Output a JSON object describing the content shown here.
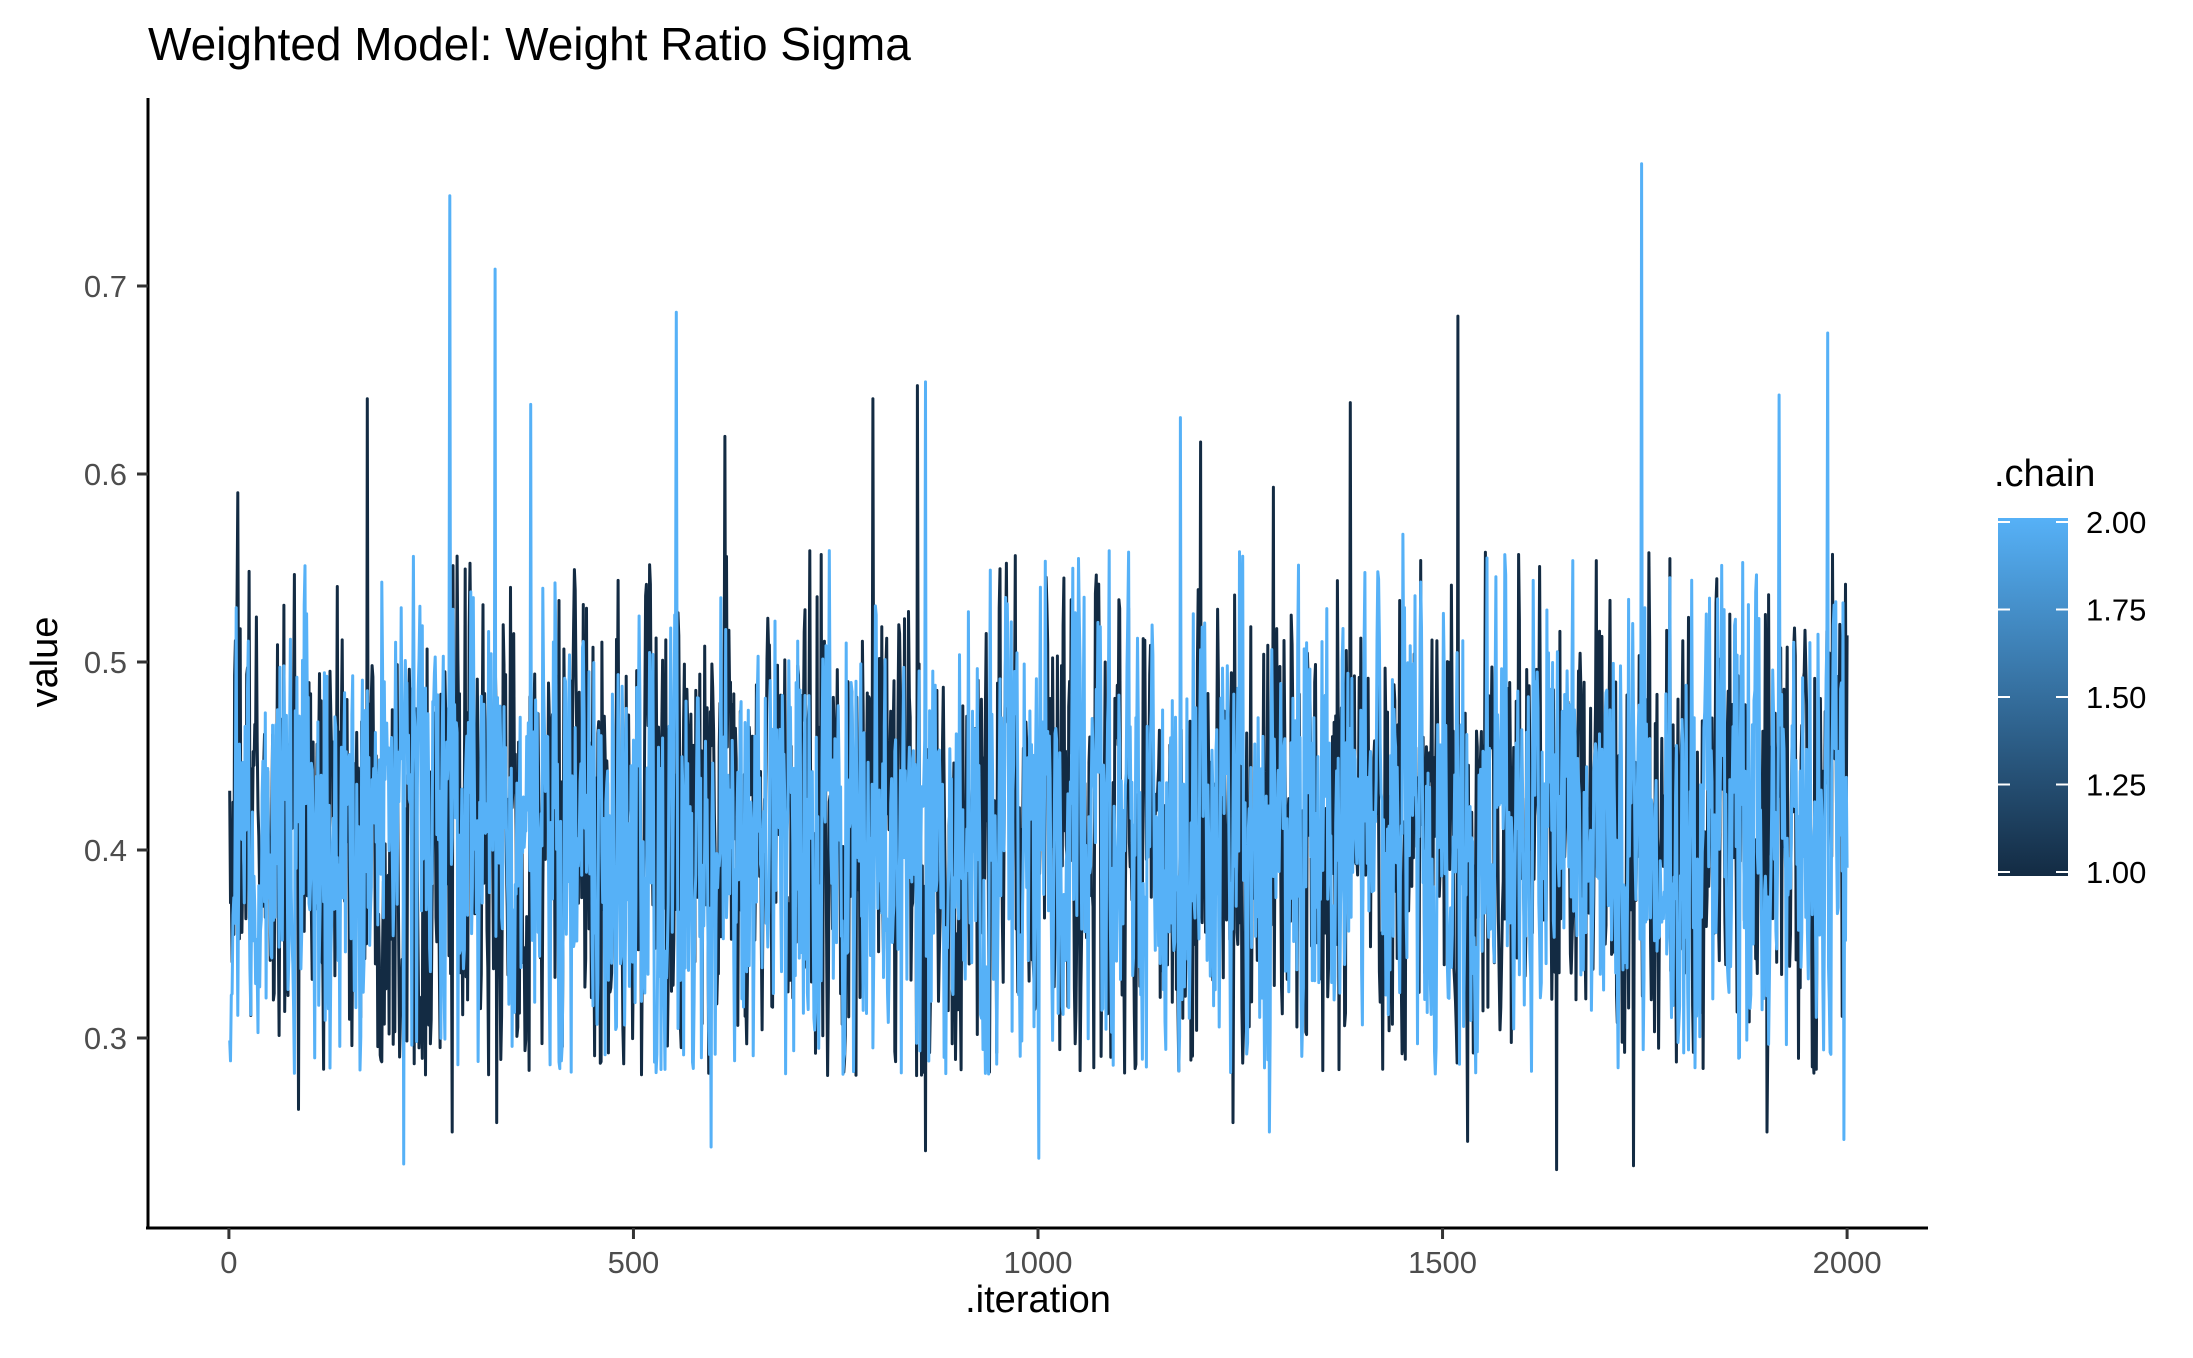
{
  "chart_data": {
    "type": "line",
    "title": "Weighted Model: Weight Ratio Sigma",
    "xlabel": ".iteration",
    "ylabel": "value",
    "xlim": [
      -100,
      2100
    ],
    "ylim": [
      0.2,
      0.8
    ],
    "x_ticks": [
      0,
      500,
      1000,
      1500,
      2000
    ],
    "x_tick_labels": [
      "0",
      "500",
      "1000",
      "1500",
      "2000"
    ],
    "y_ticks": [
      0.3,
      0.4,
      0.5,
      0.6,
      0.7
    ],
    "y_tick_labels": [
      "0.3",
      "0.4",
      "0.5",
      "0.6",
      "0.7"
    ],
    "grid": false,
    "legend": {
      "title": ".chain",
      "placement": "right",
      "type": "colorbar",
      "ticks": [
        2.0,
        1.75,
        1.5,
        1.25,
        1.0
      ],
      "tick_labels": [
        "2.00",
        "1.75",
        "1.50",
        "1.25",
        "1.00"
      ],
      "low_color": "#132B43",
      "high_color": "#56B1F7"
    },
    "series": [
      {
        "chain": 1,
        "color": "#132B43",
        "n_points": 2000,
        "center": 0.41,
        "range": [
          0.23,
          0.685
        ],
        "peaks": [
          {
            "x": 10,
            "y": 0.59
          },
          {
            "x": 170,
            "y": 0.64
          },
          {
            "x": 612,
            "y": 0.62
          },
          {
            "x": 795,
            "y": 0.64
          },
          {
            "x": 850,
            "y": 0.647
          },
          {
            "x": 1200,
            "y": 0.617
          },
          {
            "x": 1290,
            "y": 0.593
          },
          {
            "x": 1385,
            "y": 0.638
          },
          {
            "x": 1518,
            "y": 0.684
          },
          {
            "x": 1780,
            "y": 0.555
          },
          {
            "x": 1990,
            "y": 0.52
          }
        ],
        "troughs": [
          {
            "x": 85,
            "y": 0.262
          },
          {
            "x": 275,
            "y": 0.25
          },
          {
            "x": 330,
            "y": 0.255
          },
          {
            "x": 860,
            "y": 0.24
          },
          {
            "x": 1240,
            "y": 0.255
          },
          {
            "x": 1530,
            "y": 0.245
          },
          {
            "x": 1640,
            "y": 0.23
          },
          {
            "x": 1735,
            "y": 0.232
          },
          {
            "x": 1900,
            "y": 0.25
          }
        ]
      },
      {
        "chain": 2,
        "color": "#56B1F7",
        "n_points": 2000,
        "center": 0.405,
        "range": [
          0.233,
          0.765
        ],
        "peaks": [
          {
            "x": 272,
            "y": 0.748
          },
          {
            "x": 328,
            "y": 0.709
          },
          {
            "x": 372,
            "y": 0.637
          },
          {
            "x": 552,
            "y": 0.686
          },
          {
            "x": 860,
            "y": 0.649
          },
          {
            "x": 1175,
            "y": 0.63
          },
          {
            "x": 1450,
            "y": 0.568
          },
          {
            "x": 1745,
            "y": 0.765
          },
          {
            "x": 1915,
            "y": 0.642
          },
          {
            "x": 1975,
            "y": 0.675
          }
        ],
        "troughs": [
          {
            "x": 215,
            "y": 0.233
          },
          {
            "x": 595,
            "y": 0.242
          },
          {
            "x": 1000,
            "y": 0.236
          },
          {
            "x": 1285,
            "y": 0.25
          },
          {
            "x": 1995,
            "y": 0.246
          }
        ]
      }
    ]
  }
}
